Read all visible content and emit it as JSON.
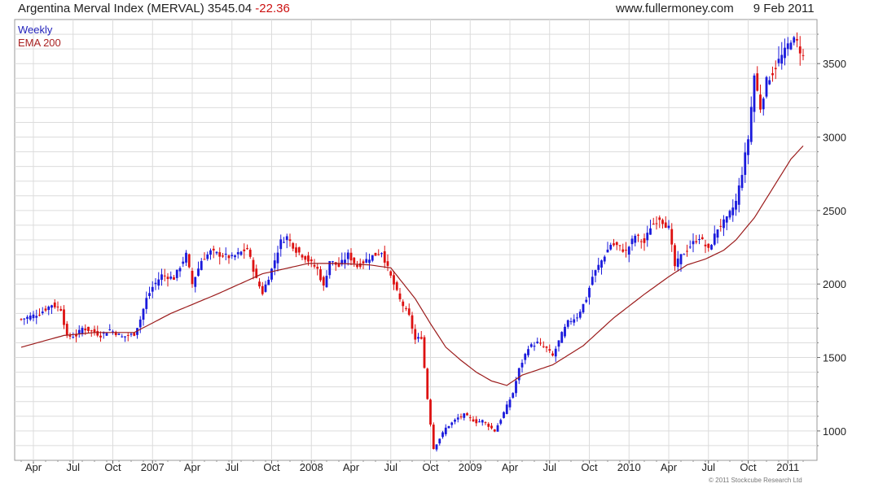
{
  "header": {
    "title": "Argentina Merval Index (MERVAL)",
    "last": "3545.04",
    "change": "-22.36",
    "site": "www.fullermoney.com",
    "date": "9 Feb 2011"
  },
  "legend": {
    "weekly": "Weekly",
    "ema": "EMA 200"
  },
  "footer": {
    "copyright": "© 2011 Stockcube Research Ltd"
  },
  "colors": {
    "up": "#1a1adc",
    "down": "#dd1111",
    "ema": "#9b1b1b",
    "grid": "#dcdcdc",
    "legend_weekly": "#2222bb",
    "legend_ema": "#aa2222"
  },
  "chart_data": {
    "type": "candlestick",
    "ylim": [
      800,
      3800
    ],
    "y_ticks": [
      1000,
      1500,
      2000,
      2500,
      3000,
      3500
    ],
    "x_ticks": [
      "Apr",
      "Jul",
      "Oct",
      "2007",
      "Apr",
      "Jul",
      "Oct",
      "2008",
      "Apr",
      "Jul",
      "Oct",
      "2009",
      "Apr",
      "Jul",
      "Oct",
      "2010",
      "Apr",
      "Jul",
      "Oct",
      "2011"
    ],
    "x_tick_weeks": [
      0,
      13,
      26,
      39,
      52,
      65,
      78,
      91,
      104,
      117,
      130,
      143,
      156,
      169,
      182,
      195,
      208,
      221,
      234,
      247
    ],
    "first_week_offset": -4,
    "close_anchors": [
      [
        -4,
        1760
      ],
      [
        2,
        1800
      ],
      [
        6,
        1860
      ],
      [
        9,
        1830
      ],
      [
        11,
        1640
      ],
      [
        14,
        1650
      ],
      [
        16,
        1700
      ],
      [
        19,
        1680
      ],
      [
        22,
        1650
      ],
      [
        25,
        1690
      ],
      [
        29,
        1640
      ],
      [
        33,
        1660
      ],
      [
        35,
        1760
      ],
      [
        37,
        1900
      ],
      [
        39,
        1980
      ],
      [
        42,
        2060
      ],
      [
        46,
        2040
      ],
      [
        50,
        2200
      ],
      [
        52,
        2000
      ],
      [
        55,
        2160
      ],
      [
        58,
        2220
      ],
      [
        61,
        2200
      ],
      [
        65,
        2180
      ],
      [
        70,
        2240
      ],
      [
        73,
        2030
      ],
      [
        75,
        1940
      ],
      [
        78,
        2100
      ],
      [
        81,
        2290
      ],
      [
        83,
        2320
      ],
      [
        86,
        2230
      ],
      [
        89,
        2180
      ],
      [
        93,
        2100
      ],
      [
        95,
        1980
      ],
      [
        97,
        2160
      ],
      [
        100,
        2120
      ],
      [
        103,
        2200
      ],
      [
        106,
        2120
      ],
      [
        110,
        2180
      ],
      [
        114,
        2220
      ],
      [
        117,
        2050
      ],
      [
        120,
        1890
      ],
      [
        123,
        1780
      ],
      [
        125,
        1620
      ],
      [
        127,
        1640
      ],
      [
        129,
        1220
      ],
      [
        131,
        880
      ],
      [
        133,
        950
      ],
      [
        135,
        1020
      ],
      [
        139,
        1090
      ],
      [
        141,
        1110
      ],
      [
        145,
        1060
      ],
      [
        147,
        1070
      ],
      [
        151,
        1000
      ],
      [
        153,
        1080
      ],
      [
        155,
        1170
      ],
      [
        157,
        1260
      ],
      [
        159,
        1420
      ],
      [
        162,
        1570
      ],
      [
        165,
        1600
      ],
      [
        168,
        1560
      ],
      [
        170,
        1510
      ],
      [
        173,
        1660
      ],
      [
        175,
        1740
      ],
      [
        178,
        1780
      ],
      [
        181,
        1900
      ],
      [
        183,
        2050
      ],
      [
        186,
        2160
      ],
      [
        189,
        2270
      ],
      [
        191,
        2260
      ],
      [
        194,
        2220
      ],
      [
        197,
        2330
      ],
      [
        200,
        2280
      ],
      [
        202,
        2390
      ],
      [
        205,
        2450
      ],
      [
        208,
        2380
      ],
      [
        210,
        2120
      ],
      [
        212,
        2190
      ],
      [
        215,
        2260
      ],
      [
        218,
        2320
      ],
      [
        221,
        2230
      ],
      [
        224,
        2380
      ],
      [
        227,
        2440
      ],
      [
        230,
        2560
      ],
      [
        232,
        2760
      ],
      [
        234,
        2990
      ],
      [
        236,
        3420
      ],
      [
        238,
        3200
      ],
      [
        240,
        3380
      ],
      [
        242,
        3440
      ],
      [
        244,
        3520
      ],
      [
        246,
        3580
      ],
      [
        248,
        3670
      ],
      [
        250,
        3640
      ],
      [
        252,
        3545
      ]
    ],
    "ema_200_anchors": [
      [
        -4,
        1570
      ],
      [
        10,
        1650
      ],
      [
        20,
        1670
      ],
      [
        33,
        1670
      ],
      [
        45,
        1800
      ],
      [
        60,
        1930
      ],
      [
        75,
        2070
      ],
      [
        90,
        2140
      ],
      [
        100,
        2140
      ],
      [
        110,
        2130
      ],
      [
        117,
        2110
      ],
      [
        125,
        1900
      ],
      [
        130,
        1730
      ],
      [
        135,
        1570
      ],
      [
        140,
        1480
      ],
      [
        145,
        1400
      ],
      [
        150,
        1340
      ],
      [
        155,
        1310
      ],
      [
        160,
        1380
      ],
      [
        170,
        1450
      ],
      [
        180,
        1580
      ],
      [
        190,
        1770
      ],
      [
        200,
        1930
      ],
      [
        208,
        2050
      ],
      [
        214,
        2130
      ],
      [
        220,
        2170
      ],
      [
        226,
        2230
      ],
      [
        230,
        2300
      ],
      [
        236,
        2450
      ],
      [
        242,
        2650
      ],
      [
        248,
        2850
      ],
      [
        252,
        2940
      ]
    ]
  }
}
